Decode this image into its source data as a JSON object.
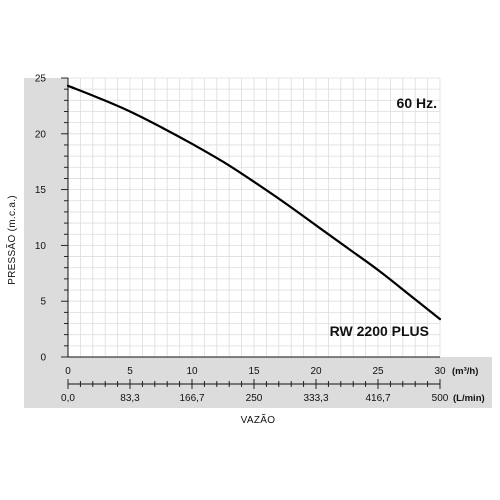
{
  "chart_data": {
    "type": "line",
    "ylabel": "PRESSÃO (m.c.a.)",
    "xlabel": "VAZÃO",
    "ylim": [
      0,
      25
    ],
    "xlim": [
      0,
      30
    ],
    "grid": true,
    "y_ticks": [
      "0",
      "5",
      "10",
      "15",
      "20",
      "25"
    ],
    "x_ticks_m3h": [
      "0",
      "5",
      "10",
      "15",
      "20",
      "25",
      "30"
    ],
    "x_unit_m3h": "(m³/h)",
    "x_ticks_lmin": [
      "0,0",
      "83,3",
      "166,7",
      "250",
      "333,3",
      "416,7",
      "500"
    ],
    "x_unit_lmin": "(L/min)",
    "annotations": {
      "frequency": "60 Hz.",
      "model": "RW 2200 PLUS"
    },
    "series": [
      {
        "name": "RW 2200 PLUS",
        "x": [
          0,
          2.5,
          5,
          7.5,
          10,
          12.5,
          15,
          17.5,
          20,
          22.5,
          25,
          27.5,
          30
        ],
        "y": [
          24.3,
          23.2,
          22.0,
          20.6,
          19.1,
          17.5,
          15.7,
          13.8,
          11.8,
          9.8,
          7.8,
          5.6,
          3.4
        ]
      }
    ]
  },
  "colors": {
    "axis_band": "#dcdcdc",
    "grid": "#dddddd",
    "curve": "#000000"
  }
}
